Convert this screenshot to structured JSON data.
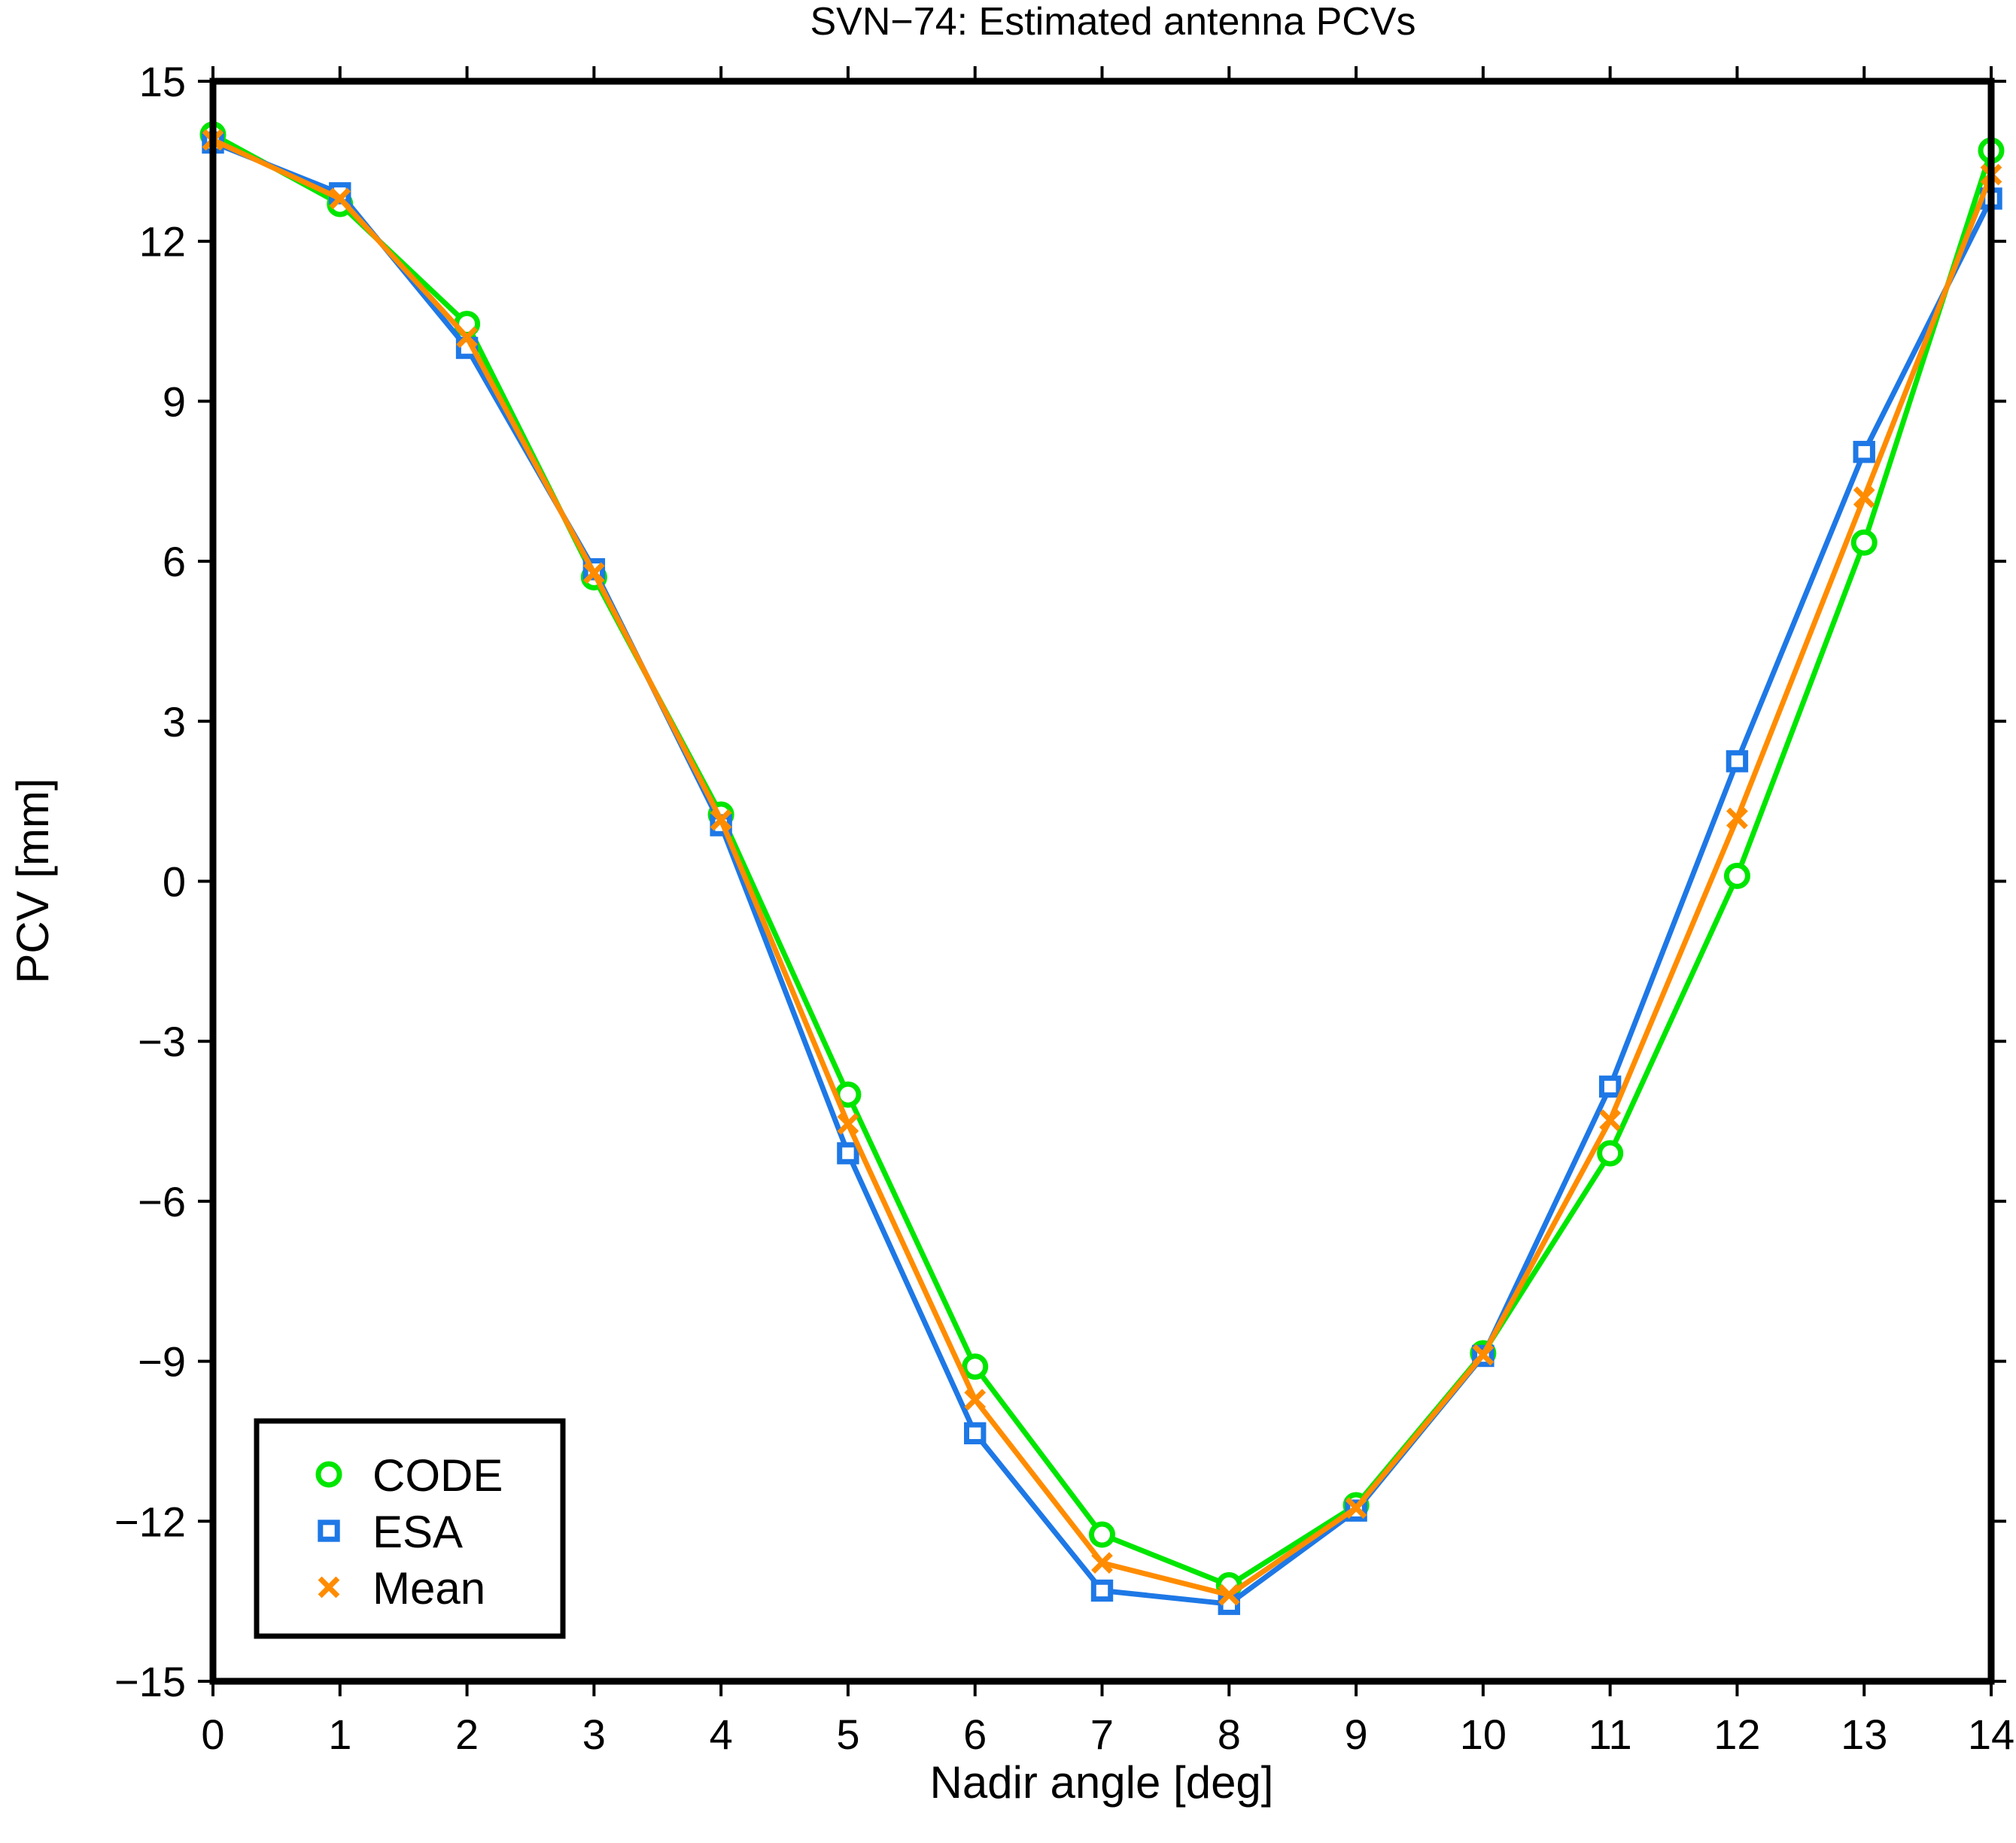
{
  "chart_data": {
    "type": "line",
    "title": "SVN−74: Estimated antenna PCVs",
    "xlabel": "Nadir angle [deg]",
    "ylabel": "PCV [mm]",
    "xlim": [
      0,
      14
    ],
    "ylim": [
      -15,
      15
    ],
    "x_ticks": [
      0,
      1,
      2,
      3,
      4,
      5,
      6,
      7,
      8,
      9,
      10,
      11,
      12,
      13,
      14
    ],
    "x_tick_labels": [
      "0",
      "1",
      "2",
      "3",
      "4",
      "5",
      "6",
      "7",
      "8",
      "9",
      "10",
      "11",
      "12",
      "13",
      "14"
    ],
    "y_ticks": [
      -15,
      -12,
      -9,
      -6,
      -3,
      0,
      3,
      6,
      9,
      12,
      15
    ],
    "y_tick_labels": [
      "−15",
      "−12",
      "−9",
      "−6",
      "−3",
      "0",
      "3",
      "6",
      "9",
      "12",
      "15"
    ],
    "grid": false,
    "legend_position": "bottom-left",
    "x": [
      0,
      1,
      2,
      3,
      4,
      5,
      6,
      7,
      8,
      9,
      10,
      11,
      12,
      13,
      14
    ],
    "series": [
      {
        "name": "CODE",
        "marker": "circle",
        "color": "#00e600",
        "values": [
          14.0,
          12.7,
          10.45,
          5.7,
          1.25,
          -4.0,
          -9.1,
          -12.25,
          -13.2,
          -11.7,
          -8.85,
          -5.1,
          0.1,
          6.35,
          13.7
        ]
      },
      {
        "name": "ESA",
        "marker": "square",
        "color": "#1e78e6",
        "values": [
          13.85,
          12.9,
          10.0,
          5.85,
          1.05,
          -5.1,
          -10.35,
          -13.3,
          -13.55,
          -11.8,
          -8.9,
          -3.85,
          2.25,
          8.05,
          12.8
        ]
      },
      {
        "name": "Mean",
        "marker": "x",
        "color": "#ff8c00",
        "values": [
          13.9,
          12.8,
          10.2,
          5.78,
          1.15,
          -4.55,
          -9.72,
          -12.78,
          -13.38,
          -11.75,
          -8.88,
          -4.48,
          1.18,
          7.2,
          13.25
        ]
      }
    ]
  }
}
